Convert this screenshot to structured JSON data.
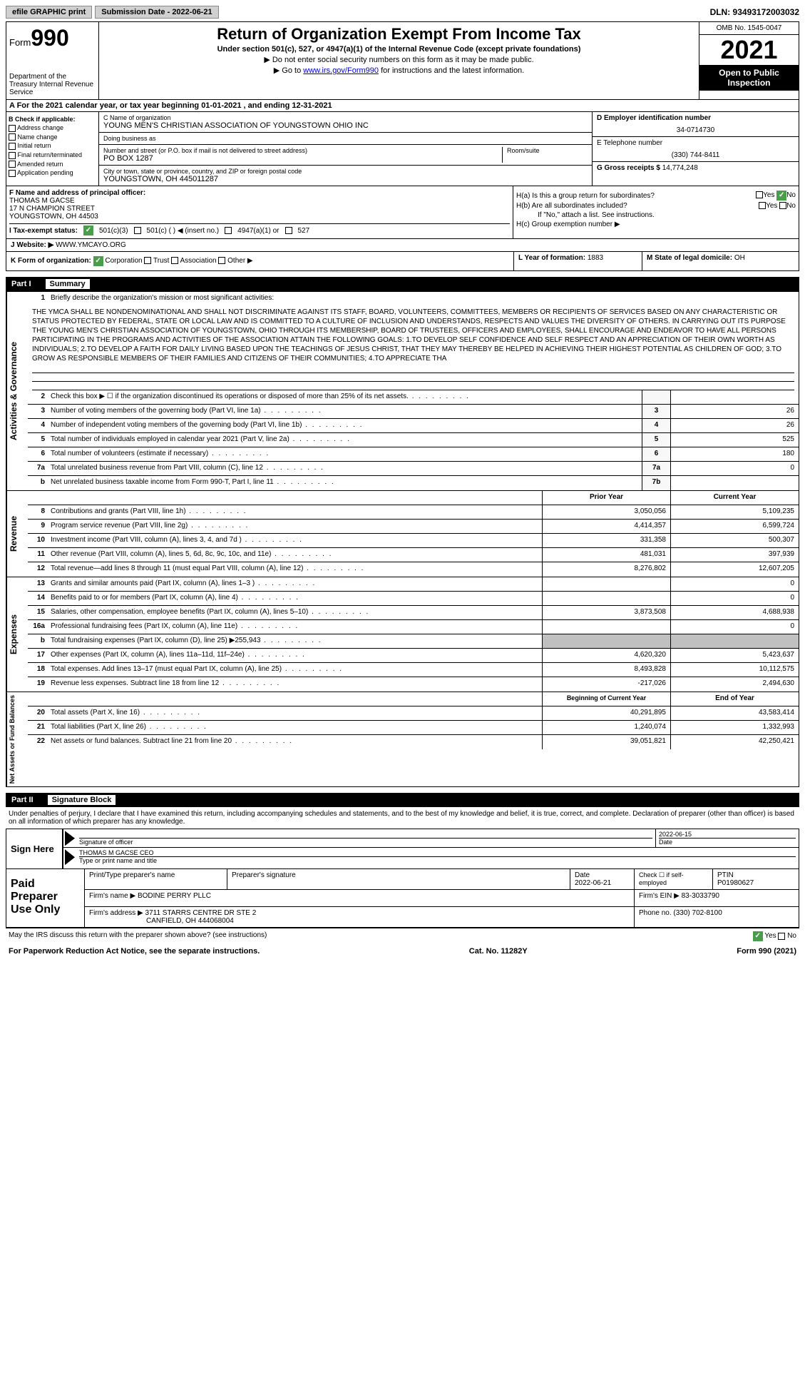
{
  "top": {
    "efile": "efile GRAPHIC print",
    "submission_label": "Submission Date - 2022-06-21",
    "dln": "DLN: 93493172003032"
  },
  "header": {
    "form_prefix": "Form",
    "form_num": "990",
    "dept": "Department of the Treasury Internal Revenue Service",
    "title": "Return of Organization Exempt From Income Tax",
    "subtitle": "Under section 501(c), 527, or 4947(a)(1) of the Internal Revenue Code (except private foundations)",
    "note1": "▶ Do not enter social security numbers on this form as it may be made public.",
    "note2_pre": "▶ Go to ",
    "note2_link": "www.irs.gov/Form990",
    "note2_post": " for instructions and the latest information.",
    "omb": "OMB No. 1545-0047",
    "year": "2021",
    "open": "Open to Public Inspection"
  },
  "rowA": "A   For the 2021 calendar year, or tax year beginning 01-01-2021    , and ending 12-31-2021",
  "colB": {
    "title": "B Check if applicable:",
    "items": [
      "Address change",
      "Name change",
      "Initial return",
      "Final return/terminated",
      "Amended return",
      "Application pending"
    ]
  },
  "colC": {
    "name_label": "C Name of organization",
    "name": "YOUNG MEN'S CHRISTIAN ASSOCIATION OF YOUNGSTOWN OHIO INC",
    "dba_label": "Doing business as",
    "addr_label": "Number and street (or P.O. box if mail is not delivered to street address)",
    "addr": "PO BOX 1287",
    "room_label": "Room/suite",
    "city_label": "City or town, state or province, country, and ZIP or foreign postal code",
    "city": "YOUNGSTOWN, OH  445011287"
  },
  "colD": {
    "ein_label": "D Employer identification number",
    "ein": "34-0714730",
    "phone_label": "E Telephone number",
    "phone": "(330) 744-8411",
    "gross_label": "G Gross receipts $",
    "gross": "14,774,248"
  },
  "rowF": {
    "label": "F  Name and address of principal officer:",
    "name": "THOMAS M GACSE",
    "addr1": "17 N CHAMPION STREET",
    "addr2": "YOUNGSTOWN, OH  44503"
  },
  "rowH": {
    "ha": "H(a)  Is this a group return for subordinates?",
    "hb": "H(b)  Are all subordinates included?",
    "hb_note": "If \"No,\" attach a list. See instructions.",
    "hc": "H(c)  Group exemption number ▶"
  },
  "rowI": {
    "label": "I   Tax-exempt status:",
    "opt1": "501(c)(3)",
    "opt2": "501(c) (    ) ◀ (insert no.)",
    "opt3": "4947(a)(1) or",
    "opt4": "527"
  },
  "rowJ": {
    "label": "J   Website: ▶",
    "val": "WWW.YMCAYO.ORG"
  },
  "rowK": {
    "label": "K Form of organization:",
    "opts": [
      "Corporation",
      "Trust",
      "Association",
      "Other ▶"
    ],
    "L_label": "L Year of formation:",
    "L_val": "1883",
    "M_label": "M State of legal domicile:",
    "M_val": "OH"
  },
  "part1": {
    "num": "Part I",
    "title": "Summary"
  },
  "mission": {
    "label": "Briefly describe the organization's mission or most significant activities:",
    "text": "THE YMCA SHALL BE NONDENOMINATIONAL AND SHALL NOT DISCRIMINATE AGAINST ITS STAFF, BOARD, VOLUNTEERS, COMMITTEES, MEMBERS OR RECIPIENTS OF SERVICES BASED ON ANY CHARACTERISTIC OR STATUS PROTECTED BY FEDERAL, STATE OR LOCAL LAW AND IS COMMITTED TO A CULTURE OF INCLUSION AND UNDERSTANDS, RESPECTS AND VALUES THE DIVERSITY OF OTHERS. IN CARRYING OUT ITS PURPOSE THE YOUNG MEN'S CHRISTIAN ASSOCIATION OF YOUNGSTOWN, OHIO THROUGH ITS MEMBERSHIP, BOARD OF TRUSTEES, OFFICERS AND EMPLOYEES, SHALL ENCOURAGE AND ENDEAVOR TO HAVE ALL PERSONS PARTICIPATING IN THE PROGRAMS AND ACTIVITIES OF THE ASSOCIATION ATTAIN THE FOLLOWING GOALS: 1.TO DEVELOP SELF CONFIDENCE AND SELF RESPECT AND AN APPRECIATION OF THEIR OWN WORTH AS INDIVIDUALS; 2.TO DEVELOP A FAITH FOR DAILY LIVING BASED UPON THE TEACHINGS OF JESUS CHRIST, THAT THEY MAY THEREBY BE HELPED IN ACHIEVING THEIR HIGHEST POTENTIAL AS CHILDREN OF GOD; 3.TO GROW AS RESPONSIBLE MEMBERS OF THEIR FAMILIES AND CITIZENS OF THEIR COMMUNITIES; 4.TO APPRECIATE THA"
  },
  "gov_rows": [
    {
      "n": "2",
      "t": "Check this box ▶ ☐  if the organization discontinued its operations or disposed of more than 25% of its net assets.",
      "c": "",
      "v": ""
    },
    {
      "n": "3",
      "t": "Number of voting members of the governing body (Part VI, line 1a)",
      "c": "3",
      "v": "26"
    },
    {
      "n": "4",
      "t": "Number of independent voting members of the governing body (Part VI, line 1b)",
      "c": "4",
      "v": "26"
    },
    {
      "n": "5",
      "t": "Total number of individuals employed in calendar year 2021 (Part V, line 2a)",
      "c": "5",
      "v": "525"
    },
    {
      "n": "6",
      "t": "Total number of volunteers (estimate if necessary)",
      "c": "6",
      "v": "180"
    },
    {
      "n": "7a",
      "t": "Total unrelated business revenue from Part VIII, column (C), line 12",
      "c": "7a",
      "v": "0"
    },
    {
      "n": "b",
      "t": "Net unrelated business taxable income from Form 990-T, Part I, line 11",
      "c": "7b",
      "v": ""
    }
  ],
  "col_headers": {
    "prior": "Prior Year",
    "current": "Current Year"
  },
  "revenue_rows": [
    {
      "n": "8",
      "t": "Contributions and grants (Part VIII, line 1h)",
      "p": "3,050,056",
      "c": "5,109,235"
    },
    {
      "n": "9",
      "t": "Program service revenue (Part VIII, line 2g)",
      "p": "4,414,357",
      "c": "6,599,724"
    },
    {
      "n": "10",
      "t": "Investment income (Part VIII, column (A), lines 3, 4, and 7d )",
      "p": "331,358",
      "c": "500,307"
    },
    {
      "n": "11",
      "t": "Other revenue (Part VIII, column (A), lines 5, 6d, 8c, 9c, 10c, and 11e)",
      "p": "481,031",
      "c": "397,939"
    },
    {
      "n": "12",
      "t": "Total revenue—add lines 8 through 11 (must equal Part VIII, column (A), line 12)",
      "p": "8,276,802",
      "c": "12,607,205"
    }
  ],
  "expense_rows": [
    {
      "n": "13",
      "t": "Grants and similar amounts paid (Part IX, column (A), lines 1–3 )",
      "p": "",
      "c": "0"
    },
    {
      "n": "14",
      "t": "Benefits paid to or for members (Part IX, column (A), line 4)",
      "p": "",
      "c": "0"
    },
    {
      "n": "15",
      "t": "Salaries, other compensation, employee benefits (Part IX, column (A), lines 5–10)",
      "p": "3,873,508",
      "c": "4,688,938"
    },
    {
      "n": "16a",
      "t": "Professional fundraising fees (Part IX, column (A), line 11e)",
      "p": "",
      "c": "0"
    },
    {
      "n": "b",
      "t": "Total fundraising expenses (Part IX, column (D), line 25) ▶255,943",
      "p": "GRAY",
      "c": "GRAY"
    },
    {
      "n": "17",
      "t": "Other expenses (Part IX, column (A), lines 11a–11d, 11f–24e)",
      "p": "4,620,320",
      "c": "5,423,637"
    },
    {
      "n": "18",
      "t": "Total expenses. Add lines 13–17 (must equal Part IX, column (A), line 25)",
      "p": "8,493,828",
      "c": "10,112,575"
    },
    {
      "n": "19",
      "t": "Revenue less expenses. Subtract line 18 from line 12",
      "p": "-217,026",
      "c": "2,494,630"
    }
  ],
  "net_headers": {
    "begin": "Beginning of Current Year",
    "end": "End of Year"
  },
  "net_rows": [
    {
      "n": "20",
      "t": "Total assets (Part X, line 16)",
      "p": "40,291,895",
      "c": "43,583,414"
    },
    {
      "n": "21",
      "t": "Total liabilities (Part X, line 26)",
      "p": "1,240,074",
      "c": "1,332,993"
    },
    {
      "n": "22",
      "t": "Net assets or fund balances. Subtract line 21 from line 20",
      "p": "39,051,821",
      "c": "42,250,421"
    }
  ],
  "side_labels": {
    "gov": "Activities & Governance",
    "rev": "Revenue",
    "exp": "Expenses",
    "net": "Net Assets or Fund Balances"
  },
  "part2": {
    "num": "Part II",
    "title": "Signature Block",
    "intro": "Under penalties of perjury, I declare that I have examined this return, including accompanying schedules and statements, and to the best of my knowledge and belief, it is true, correct, and complete. Declaration of preparer (other than officer) is based on all information of which preparer has any knowledge."
  },
  "sign": {
    "here": "Sign Here",
    "sig_label": "Signature of officer",
    "date": "2022-06-15",
    "date_label": "Date",
    "name": "THOMAS M GACSE CEO",
    "name_label": "Type or print name and title"
  },
  "prep": {
    "title": "Paid Preparer Use Only",
    "h1": "Print/Type preparer's name",
    "h2": "Preparer's signature",
    "h3": "Date",
    "h3v": "2022-06-21",
    "h4": "Check ☐ if self-employed",
    "h5": "PTIN",
    "h5v": "P01980627",
    "firm_label": "Firm's name     ▶",
    "firm": "BODINE PERRY PLLC",
    "ein_label": "Firm's EIN ▶",
    "ein": "83-3033790",
    "addr_label": "Firm's address ▶",
    "addr1": "3711 STARRS CENTRE DR STE 2",
    "addr2": "CANFIELD, OH  444068004",
    "phone_label": "Phone no.",
    "phone": "(330) 702-8100"
  },
  "footer": {
    "q": "May the IRS discuss this return with the preparer shown above? (see instructions)",
    "yes": "Yes",
    "no": "No",
    "paperwork": "For Paperwork Reduction Act Notice, see the separate instructions.",
    "cat": "Cat. No. 11282Y",
    "form": "Form 990 (2021)"
  }
}
